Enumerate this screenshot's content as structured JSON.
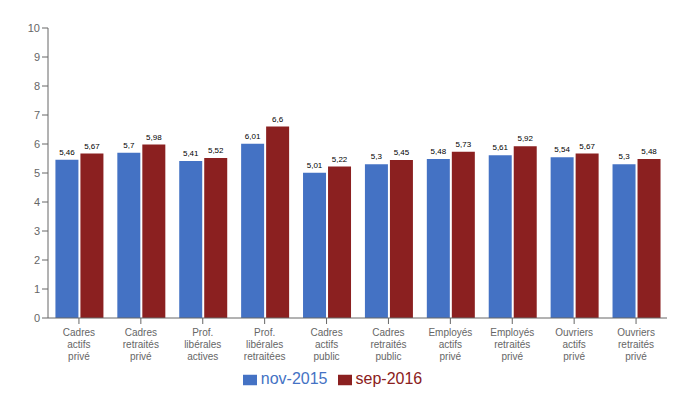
{
  "chart_data": {
    "type": "bar",
    "categories": [
      "Cadres\nactifs\nprivé",
      "Cadres\nretraités\nprivé",
      "Prof.\nlibérales\nactives",
      "Prof.\nlibérales\nretraitées",
      "Cadres\nactifs\npublic",
      "Cadres\nretraités\npublic",
      "Employés\nactifs\nprivé",
      "Employés\nretraités\nprivé",
      "Ouvriers\nactifs\nprivé",
      "Ouvriers\nretraités\nprivé"
    ],
    "series": [
      {
        "name": "nov-2015",
        "color": "#4472C4",
        "values": [
          5.46,
          5.7,
          5.41,
          6.01,
          5.01,
          5.3,
          5.48,
          5.61,
          5.54,
          5.3
        ],
        "value_labels": [
          "5,46",
          "5,7",
          "5,41",
          "6,01",
          "5,01",
          "5,3",
          "5,48",
          "5,61",
          "5,54",
          "5,3"
        ]
      },
      {
        "name": "sep-2016",
        "color": "#8B2020",
        "values": [
          5.67,
          5.98,
          5.52,
          6.6,
          5.22,
          5.45,
          5.73,
          5.92,
          5.67,
          5.48
        ],
        "value_labels": [
          "5,67",
          "5,98",
          "5,52",
          "6,6",
          "5,22",
          "5,45",
          "5,73",
          "5,92",
          "5,67",
          "5,48"
        ]
      }
    ],
    "ylim": [
      0,
      10
    ],
    "yticks": [
      0,
      1,
      2,
      3,
      4,
      5,
      6,
      7,
      8,
      9,
      10
    ],
    "grid": false,
    "legend": "bottom",
    "data_labels": true
  }
}
